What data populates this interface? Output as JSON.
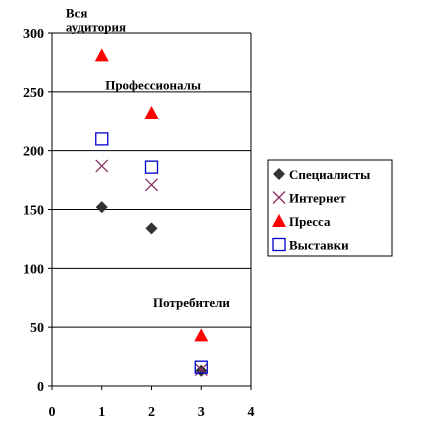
{
  "chart_data": {
    "type": "scatter",
    "xlim": [
      0,
      4
    ],
    "ylim": [
      0,
      300
    ],
    "x_ticks": [
      0,
      1,
      2,
      3,
      4
    ],
    "y_ticks": [
      0,
      50,
      100,
      150,
      200,
      250,
      300
    ],
    "grid": "horizontal",
    "legend_position": "right",
    "series": [
      {
        "name": "Специалисты",
        "marker": "diamond",
        "color": "#333333",
        "x": [
          1,
          2,
          3
        ],
        "y": [
          152,
          134,
          13
        ]
      },
      {
        "name": "Интернет",
        "marker": "x",
        "color": "#8b2f62",
        "x": [
          1,
          2,
          3
        ],
        "y": [
          187,
          171,
          14
        ]
      },
      {
        "name": "Пресса",
        "marker": "triangle",
        "color": "#ff0000",
        "x": [
          1,
          2,
          3
        ],
        "y": [
          281,
          232,
          43
        ]
      },
      {
        "name": "Выставки",
        "marker": "square",
        "color": "#0000cc",
        "x": [
          1,
          2,
          3
        ],
        "y": [
          210,
          186,
          16
        ]
      }
    ],
    "annotations": [
      {
        "lines": [
          "Вся",
          "аудитория"
        ],
        "x": 0.28,
        "y": 313
      },
      {
        "lines": [
          "Профессионалы"
        ],
        "x": 1.07,
        "y": 252
      },
      {
        "lines": [
          "Потребители"
        ],
        "x": 2.03,
        "y": 67
      }
    ]
  }
}
